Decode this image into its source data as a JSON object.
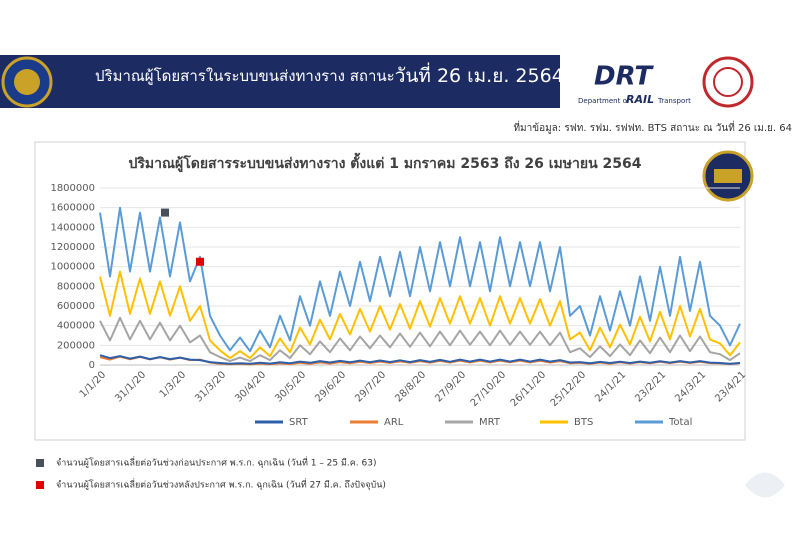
{
  "header": {
    "title_main": "ปริมาณผู้โดยสารในระบบขนส่งทางราง สถานะ",
    "title_date": "วันที่ 26 เม.ย. 2564",
    "logo_brand": "DRT",
    "logo_line1": "Department of",
    "logo_line2": "RAIL",
    "logo_line3": "Transport",
    "source": "ที่มาข้อมูล: รฟท. รฟม. รฟฟท. BTS สถานะ ณ วันที่ 26 เม.ย. 64"
  },
  "chart_data": {
    "type": "line",
    "title": "ปริมาณผู้โดยสารระบบขนส่งทางราง ตั้งแต่ 1 มกราคม 2563 ถึง 26 เมษายน 2564",
    "categories": [
      "1/1/20",
      null,
      null,
      null,
      "31/1/20",
      null,
      null,
      null,
      "1/3/20",
      null,
      null,
      null,
      "31/3/20",
      null,
      null,
      null,
      "30/4/20",
      null,
      null,
      null,
      "30/5/20",
      null,
      null,
      null,
      "29/6/20",
      null,
      null,
      null,
      "29/7/20",
      null,
      null,
      null,
      "28/8/20",
      null,
      null,
      null,
      "27/9/20",
      null,
      null,
      null,
      "27/10/20",
      null,
      null,
      null,
      "26/11/20",
      null,
      null,
      null,
      "25/12/20",
      null,
      null,
      null,
      "24/1/21",
      null,
      null,
      null,
      "23/2/21",
      null,
      null,
      null,
      "24/3/21",
      null,
      null,
      null,
      "23/4/21"
    ],
    "ylim": [
      0,
      1800000
    ],
    "yticks": [
      0,
      200000,
      400000,
      600000,
      800000,
      1000000,
      1200000,
      1400000,
      1600000,
      1800000
    ],
    "grid": true,
    "series": [
      {
        "name": "Total",
        "color": "#5b9bd5",
        "values": [
          1550000,
          900000,
          1600000,
          950000,
          1550000,
          950000,
          1500000,
          900000,
          1450000,
          850000,
          1100000,
          500000,
          300000,
          150000,
          280000,
          140000,
          350000,
          180000,
          500000,
          250000,
          700000,
          400000,
          850000,
          500000,
          950000,
          600000,
          1050000,
          650000,
          1100000,
          700000,
          1150000,
          700000,
          1200000,
          750000,
          1250000,
          800000,
          1300000,
          800000,
          1250000,
          750000,
          1300000,
          800000,
          1250000,
          800000,
          1250000,
          750000,
          1200000,
          500000,
          600000,
          300000,
          700000,
          350000,
          750000,
          400000,
          900000,
          450000,
          1000000,
          500000,
          1100000,
          550000,
          1050000,
          500000,
          400000,
          200000,
          420000
        ]
      },
      {
        "name": "BTS",
        "color": "#ffc000",
        "values": [
          900000,
          500000,
          950000,
          520000,
          880000,
          520000,
          850000,
          500000,
          800000,
          450000,
          600000,
          250000,
          150000,
          70000,
          140000,
          70000,
          180000,
          90000,
          270000,
          130000,
          380000,
          210000,
          460000,
          260000,
          520000,
          310000,
          570000,
          340000,
          600000,
          360000,
          620000,
          370000,
          650000,
          390000,
          680000,
          420000,
          700000,
          420000,
          680000,
          400000,
          700000,
          420000,
          680000,
          420000,
          670000,
          400000,
          650000,
          260000,
          330000,
          150000,
          380000,
          180000,
          410000,
          210000,
          490000,
          240000,
          540000,
          260000,
          600000,
          290000,
          570000,
          260000,
          220000,
          100000,
          230000
        ]
      },
      {
        "name": "MRT",
        "color": "#a5a5a5",
        "values": [
          450000,
          250000,
          480000,
          260000,
          450000,
          260000,
          430000,
          250000,
          400000,
          230000,
          300000,
          130000,
          80000,
          40000,
          75000,
          40000,
          100000,
          50000,
          150000,
          70000,
          200000,
          110000,
          240000,
          130000,
          270000,
          150000,
          290000,
          170000,
          300000,
          180000,
          320000,
          185000,
          330000,
          190000,
          340000,
          200000,
          350000,
          205000,
          340000,
          200000,
          350000,
          205000,
          340000,
          205000,
          340000,
          200000,
          330000,
          130000,
          170000,
          80000,
          190000,
          90000,
          210000,
          100000,
          250000,
          120000,
          280000,
          130000,
          300000,
          140000,
          290000,
          130000,
          110000,
          50000,
          120000
        ]
      },
      {
        "name": "ARL",
        "color": "#ed7d31",
        "values": [
          80000,
          55000,
          85000,
          58000,
          82000,
          57000,
          80000,
          55000,
          75000,
          50000,
          55000,
          25000,
          12000,
          7000,
          11000,
          6000,
          14000,
          8000,
          18000,
          10000,
          22000,
          13000,
          26000,
          15000,
          30000,
          18000,
          33000,
          20000,
          35000,
          21000,
          37000,
          22000,
          40000,
          24000,
          42000,
          25000,
          44000,
          26000,
          44000,
          26000,
          45000,
          27000,
          44000,
          26000,
          43000,
          25000,
          40000,
          18000,
          22000,
          12000,
          25000,
          14000,
          27000,
          15000,
          30000,
          17000,
          33000,
          19000,
          35000,
          20000,
          34000,
          19000,
          18000,
          10000,
          20000
        ]
      },
      {
        "name": "SRT",
        "color": "#2e5fa8",
        "values": [
          100000,
          70000,
          90000,
          65000,
          85000,
          60000,
          80000,
          60000,
          75000,
          55000,
          50000,
          30000,
          20000,
          12000,
          18000,
          12000,
          22000,
          14000,
          28000,
          18000,
          35000,
          22000,
          40000,
          25000,
          42000,
          27000,
          45000,
          28000,
          46000,
          29000,
          48000,
          30000,
          50000,
          32000,
          52000,
          33000,
          55000,
          35000,
          55000,
          35000,
          55000,
          35000,
          55000,
          35000,
          55000,
          35000,
          50000,
          25000,
          30000,
          18000,
          32000,
          20000,
          33000,
          20000,
          35000,
          22000,
          38000,
          24000,
          40000,
          25000,
          40000,
          24000,
          20000,
          12000,
          20000
        ]
      }
    ],
    "legend_order": [
      "SRT",
      "ARL",
      "MRT",
      "BTS",
      "Total"
    ],
    "markers": [
      {
        "color": "#4a4f5c",
        "value": 1550000,
        "text": "จำนวนผู้โดยสารเฉลี่ยต่อวันช่วงก่อนประกาศ  พ.ร.ก. ฉุกเฉิน (วันที่ 1 – 25 มี.ค. 63)"
      },
      {
        "color": "#e00000",
        "value": 1050000,
        "text": "จำนวนผู้โดยสารเฉลี่ยต่อวันช่วงหลังประกาศ  พ.ร.ก. ฉุกเฉิน (วันที่ 27 มี.ค. ถึงปัจจุบัน)"
      }
    ]
  }
}
